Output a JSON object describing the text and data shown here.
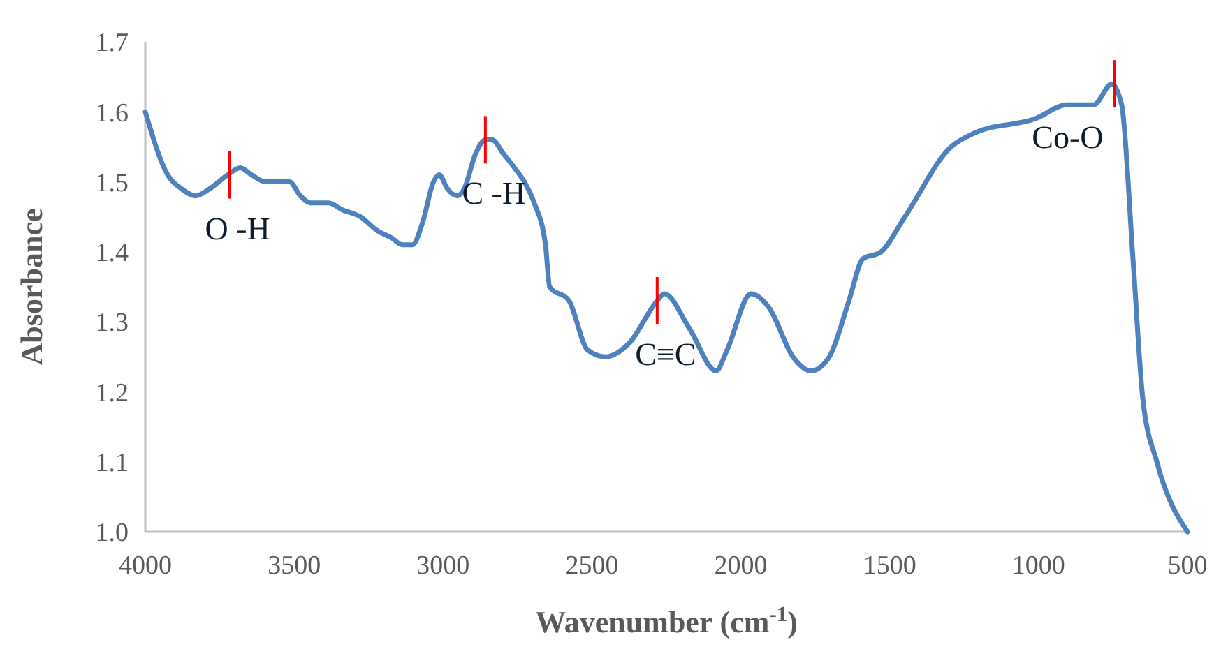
{
  "chart_data": {
    "type": "line",
    "xlabel": "Wavenumber (cm$^{-1}$)",
    "ylabel": "Absorbance",
    "xlim": [
      4000,
      500
    ],
    "xticks": [
      4000,
      3500,
      3000,
      2500,
      2000,
      1500,
      1000,
      500
    ],
    "ylim": [
      1.0,
      1.7
    ],
    "yticks": [
      {
        "value": 1.0,
        "label": "1.0"
      },
      1.1,
      1.2,
      1.3,
      1.4,
      1.5,
      1.6,
      1.7
    ],
    "grid": false,
    "marker": "none",
    "line_style": "solid",
    "series": [
      {
        "color": "#4f81bd",
        "x": [
          4000,
          3925,
          3878,
          3831,
          3784,
          3723,
          3681,
          3643,
          3596,
          3549,
          3516,
          3479,
          3446,
          3385,
          3338,
          3277,
          3220,
          3173,
          3136,
          3103,
          3070,
          3032,
          3013,
          2985,
          2952,
          2929,
          2891,
          2858,
          2835,
          2797,
          2760,
          2727,
          2694,
          2656,
          2642,
          2577,
          2515,
          2454,
          2374,
          2281,
          2257,
          2172,
          2083,
          2046,
          1966,
          1905,
          1825,
          1764,
          1703,
          1637,
          1590,
          1529,
          1449,
          1294,
          1214,
          1012,
          904,
          815,
          754,
          721,
          683,
          650,
          603,
          500
        ],
        "values": [
          1.6,
          1.51,
          1.49,
          1.48,
          1.49,
          1.51,
          1.52,
          1.51,
          1.5,
          1.5,
          1.5,
          1.48,
          1.47,
          1.47,
          1.46,
          1.45,
          1.43,
          1.42,
          1.41,
          1.41,
          1.44,
          1.5,
          1.51,
          1.49,
          1.48,
          1.49,
          1.54,
          1.56,
          1.56,
          1.54,
          1.52,
          1.5,
          1.47,
          1.41,
          1.35,
          1.33,
          1.26,
          1.25,
          1.27,
          1.33,
          1.34,
          1.29,
          1.23,
          1.26,
          1.34,
          1.32,
          1.25,
          1.23,
          1.25,
          1.33,
          1.39,
          1.4,
          1.45,
          1.55,
          1.57,
          1.59,
          1.61,
          1.61,
          1.64,
          1.61,
          1.39,
          1.19,
          1.1,
          1.0
        ]
      }
    ],
    "annotations": [
      {
        "text": "O -H",
        "x": 3718,
        "y": 1.51
      },
      {
        "text": "C -H",
        "x": 2858,
        "y": 1.56
      },
      {
        "text": "C≡C",
        "x": 2281,
        "y": 1.33
      },
      {
        "text": "Co-O",
        "x": 745,
        "y": 1.64
      }
    ]
  }
}
